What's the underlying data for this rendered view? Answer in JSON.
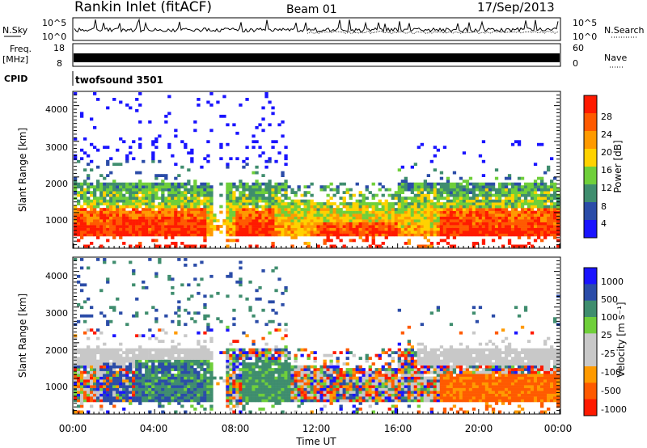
{
  "header": {
    "station": "Rankin Inlet (fitACF)",
    "beam": "Beam 01",
    "date": "17/Sep/2013"
  },
  "aux": {
    "nsky_label": "N.Sky",
    "nsky_ticks": [
      "10^5",
      "10^0"
    ],
    "nsearch_label": "N.Search",
    "nsearch_ticks": [
      "10^5",
      "10^0"
    ],
    "freq_label": "Freq.",
    "freq_unit": "[MHz]",
    "freq_ticks": [
      "18",
      "8"
    ],
    "nave_label": "Nave",
    "nave_ticks": [
      "60",
      "0"
    ],
    "cpid_label": "CPID",
    "cpid_value": "twofsound 3501"
  },
  "colors": {
    "power_scale": [
      "#1a14ff",
      "#2b4ca8",
      "#3f8d6e",
      "#6fcf3a",
      "#ffd200",
      "#ff9a00",
      "#ff5a00",
      "#ff1a00"
    ],
    "velocity_scale": [
      "#ff1a00",
      "#ff5a00",
      "#ff9a00",
      "#c8c8c8",
      "#c8c8c8",
      "#6fcf3a",
      "#3f8d6e",
      "#2b4ca8",
      "#1a14ff"
    ]
  },
  "chart_data": [
    {
      "type": "heatmap",
      "name": "power",
      "ylabel": "Slant Range [km]",
      "yticks": [
        "1000",
        "2000",
        "3000",
        "4000"
      ],
      "ylim": [
        180,
        4500
      ],
      "xlim_hours": [
        0,
        24
      ],
      "colorbar_label": "Power [dB]",
      "colorbar_ticks": [
        "4",
        "8",
        "12",
        "16",
        "20",
        "24",
        "28"
      ],
      "colorbar_range": [
        0,
        32
      ]
    },
    {
      "type": "heatmap",
      "name": "velocity",
      "ylabel": "Slant Range [km]",
      "yticks": [
        "1000",
        "2000",
        "3000",
        "4000"
      ],
      "ylim": [
        180,
        4500
      ],
      "xlim_hours": [
        0,
        24
      ],
      "colorbar_label": "Velocity [m s⁻¹]",
      "colorbar_ticks": [
        "1000",
        "500",
        "100",
        "25",
        "-25",
        "-100",
        "-500",
        "-1000"
      ]
    }
  ],
  "xaxis": {
    "label": "Time UT",
    "ticks": [
      "00:00",
      "04:00",
      "08:00",
      "12:00",
      "16:00",
      "20:00",
      "00:00"
    ]
  }
}
